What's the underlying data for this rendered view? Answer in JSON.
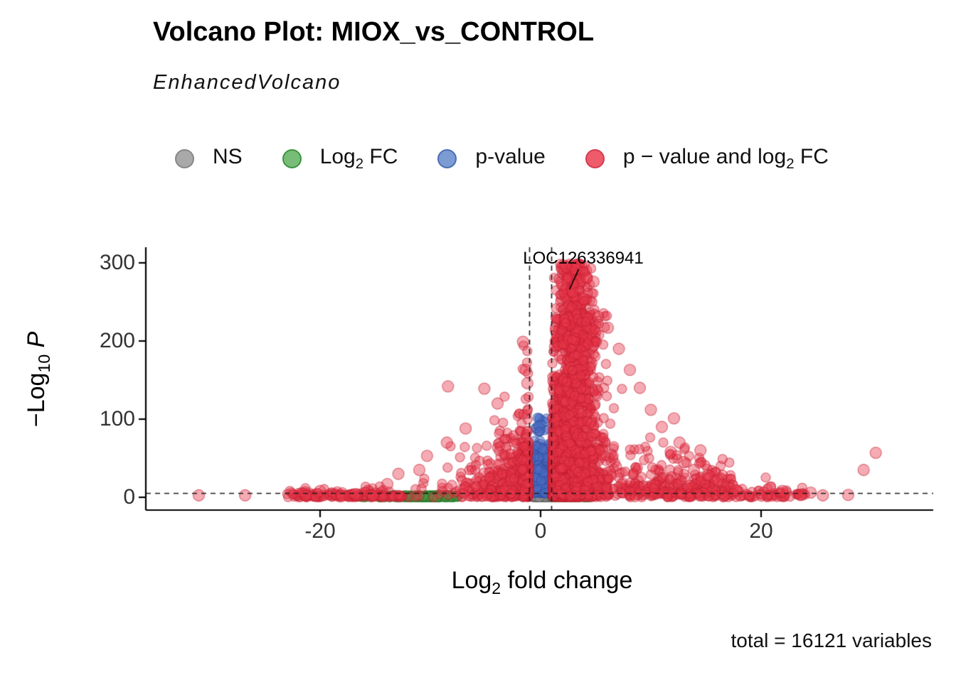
{
  "title": "Volcano Plot: MIOX_vs_CONTROL",
  "subtitle": "EnhancedVolcano",
  "legend": {
    "items": [
      {
        "name": "ns",
        "label_pre": "NS",
        "sub": "",
        "label_post": "",
        "fill": "#a9a9a9",
        "stroke": "#878787"
      },
      {
        "name": "log2fc",
        "label_pre": "Log",
        "sub": "2",
        "label_post": " FC",
        "fill": "#77bd77",
        "stroke": "#3f9442"
      },
      {
        "name": "p-value",
        "label_pre": "p-value",
        "sub": "",
        "label_post": "",
        "fill": "#7b9bd2",
        "stroke": "#4a6fb5"
      },
      {
        "name": "p-and-fc",
        "label_pre": "p − value and log",
        "sub": "2",
        "label_post": " FC",
        "fill": "#ee5b6b",
        "stroke": "#d63a52"
      }
    ]
  },
  "axes": {
    "x": {
      "title_pre": "Log",
      "title_sub": "2",
      "title_post": " fold change",
      "ticks": [
        {
          "label": "-20",
          "value": -20
        },
        {
          "label": "0",
          "value": 0
        },
        {
          "label": "20",
          "value": 20
        }
      ]
    },
    "y": {
      "title_pre": "−Log",
      "title_sub": "10",
      "title_post": " P",
      "ticks": [
        {
          "label": "0",
          "value": 0
        },
        {
          "label": "100",
          "value": 100
        },
        {
          "label": "200",
          "value": 200
        },
        {
          "label": "300",
          "value": 300
        }
      ]
    }
  },
  "caption": "total = 16121 variables",
  "annotation": {
    "label": "LOC126336941",
    "line": {
      "x1": 3.45,
      "y1": 292,
      "x2": 2.62,
      "y2": 266
    }
  },
  "chart_data": {
    "type": "scatter",
    "subtype": "volcano",
    "title": "Volcano Plot: MIOX_vs_CONTROL",
    "subtitle": "EnhancedVolcano",
    "xlabel": "Log2 fold change",
    "ylabel": "-Log10 P",
    "xlim": [
      -35.8,
      35.5
    ],
    "ylim": [
      0,
      320
    ],
    "total_variables": 16121,
    "thresholds": {
      "log2fc": [
        -1,
        1
      ],
      "pvalue_line_y": 5
    },
    "legend": [
      "NS",
      "Log2 FC",
      "p-value",
      "p-value and log2 FC"
    ],
    "labeled_points": [
      {
        "gene": "LOC126336941",
        "x": 2.62,
        "y": 263
      }
    ],
    "seed": 42,
    "colors": {
      "ns": {
        "fill": "rgba(150,150,150,0.55)",
        "stroke": "rgba(100,100,100,0.65)"
      },
      "fc": {
        "fill": "rgba(68,160,68,0.50)",
        "stroke": "rgba(40,120,40,0.60)"
      },
      "p": {
        "fill": "rgba(75,110,195,0.50)",
        "stroke": "rgba(50,80,160,0.60)"
      },
      "fcp": {
        "fill": "rgba(232,55,74,0.42)",
        "stroke": "rgba(196,28,48,0.50)"
      }
    },
    "clusters": [
      {
        "name": "ns-center",
        "cat": "ns",
        "n": 230,
        "x": {
          "dist": "normal",
          "mean": 0,
          "sd": 0.42,
          "min": -1,
          "max": 1
        },
        "y": {
          "dist": "halfnormal",
          "sd": 1.7,
          "max": 4.6
        }
      },
      {
        "name": "fc-left-main",
        "cat": "fc",
        "n": 250,
        "x": {
          "dist": "normal",
          "mean": -10,
          "sd": 1.3,
          "min": -14.5,
          "max": -7.4
        },
        "y": {
          "dist": "halfnormal",
          "sd": 1.3,
          "max": 4
        }
      },
      {
        "name": "fc-left-sparse",
        "cat": "fc",
        "n": 55,
        "x": {
          "dist": "uniform",
          "min": -16.5,
          "max": -12
        },
        "y": {
          "dist": "halfnormal",
          "sd": 1.2,
          "max": 3.5
        }
      },
      {
        "name": "fc-right",
        "cat": "fc",
        "n": 140,
        "x": {
          "dist": "normal",
          "mean": 2.6,
          "sd": 1.1,
          "min": 1.05,
          "max": 6
        },
        "y": {
          "dist": "halfnormal",
          "sd": 1.2,
          "max": 4
        }
      },
      {
        "name": "p-center",
        "cat": "p",
        "n": 320,
        "x": {
          "dist": "normal",
          "mean": 0,
          "sd": 0.42,
          "min": -1,
          "max": 1
        },
        "y": {
          "dist": "exp",
          "offset": 5,
          "scale": 26,
          "max": 103
        }
      },
      {
        "name": "fcp-right-exp",
        "cat": "fcp",
        "n": 1450,
        "x": {
          "dist": "exp",
          "offset": 1.05,
          "scale": 1.7,
          "max": 12.5
        },
        "y": {
          "dist": "exp",
          "scale": 42,
          "max": 300
        },
        "taper": {
          "start": 6,
          "span": 16,
          "min": 0.3
        }
      },
      {
        "name": "fcp-right-core",
        "cat": "fcp",
        "n": 900,
        "x": {
          "dist": "normal",
          "mean": 3,
          "sd": 1.2,
          "min": 1.05,
          "max": 8
        },
        "y": {
          "dist": "exp",
          "scale": 55,
          "max": 300
        }
      },
      {
        "name": "fcp-tower",
        "cat": "fcp",
        "n": 380,
        "x": {
          "dist": "normal",
          "mean": 3.1,
          "sd": 0.9,
          "min": 1.6,
          "max": 5.6
        },
        "y": {
          "dist": "uniform",
          "min": 120,
          "max": 300
        }
      },
      {
        "name": "fcp-band",
        "cat": "fcp",
        "n": 160,
        "x": {
          "dist": "normal",
          "mean": 3.2,
          "sd": 1.3,
          "min": 1.1,
          "max": 6.5
        },
        "y": {
          "dist": "uniform",
          "min": 190,
          "max": 236
        }
      },
      {
        "name": "fcp-right-tail",
        "cat": "fcp",
        "n": 270,
        "x": {
          "dist": "uniform",
          "min": 8,
          "max": 17.5
        },
        "y": {
          "dist": "exp",
          "scale": 14,
          "max": 70
        }
      },
      {
        "name": "fcp-right-far",
        "cat": "fcp",
        "n": 60,
        "x": {
          "dist": "uniform",
          "min": 17.5,
          "max": 24
        },
        "y": {
          "dist": "exp",
          "scale": 4,
          "max": 28
        }
      },
      {
        "name": "fcp-left-arm",
        "cat": "fcp",
        "n": 540,
        "x": {
          "dist": "exp",
          "offset": -1.05,
          "scale": 2.2,
          "sign": -1,
          "min": -12.5
        },
        "y": {
          "dist": "exp",
          "scale": 30,
          "max": 165
        },
        "taper": {
          "start": 1,
          "span": 13,
          "min": 0.1
        }
      },
      {
        "name": "fcp-left-spike",
        "cat": "fcp",
        "n": 70,
        "x": {
          "dist": "uniform",
          "min": -1.7,
          "max": -1.02
        },
        "y": {
          "dist": "exp",
          "scale": 55,
          "max": 205
        }
      },
      {
        "name": "fcp-left-tail",
        "cat": "fcp",
        "n": 150,
        "x": {
          "dist": "uniform",
          "min": -23,
          "max": -12.5
        },
        "y": {
          "dist": "exp",
          "scale": 3,
          "max": 14
        }
      }
    ],
    "outliers": [
      {
        "x": -31,
        "y": 2.5
      },
      {
        "x": -26.8,
        "y": 2.5
      },
      {
        "x": -21.3,
        "y": 2.5
      },
      {
        "x": -20,
        "y": 8
      },
      {
        "x": -18,
        "y": 2
      },
      {
        "x": -16.8,
        "y": 4
      },
      {
        "x": -15.2,
        "y": 2.5
      },
      {
        "x": -13.9,
        "y": 17
      },
      {
        "x": -12.9,
        "y": 30
      },
      {
        "x": -8.4,
        "y": 142
      },
      {
        "x": -5.1,
        "y": 139
      },
      {
        "x": -6.8,
        "y": 88
      },
      {
        "x": -8.5,
        "y": 70
      },
      {
        "x": -10.3,
        "y": 53
      },
      {
        "x": -11,
        "y": 35
      },
      {
        "x": -3.9,
        "y": 120
      },
      {
        "x": -1.6,
        "y": 199
      },
      {
        "x": -1.35,
        "y": 163
      },
      {
        "x": -1.2,
        "y": 146
      },
      {
        "x": 2.3,
        "y": 295
      },
      {
        "x": 3.2,
        "y": 292
      },
      {
        "x": 4.2,
        "y": 281
      },
      {
        "x": 4.8,
        "y": 276
      },
      {
        "x": 1.95,
        "y": 272
      },
      {
        "x": 2.9,
        "y": 263
      },
      {
        "x": 3.9,
        "y": 254
      },
      {
        "x": 5.2,
        "y": 231
      },
      {
        "x": 6.1,
        "y": 217
      },
      {
        "x": 7.1,
        "y": 190
      },
      {
        "x": 8.1,
        "y": 163
      },
      {
        "x": 9,
        "y": 140
      },
      {
        "x": 10,
        "y": 112
      },
      {
        "x": 11,
        "y": 90
      },
      {
        "x": 12.1,
        "y": 101
      },
      {
        "x": 11.8,
        "y": 58
      },
      {
        "x": 12.6,
        "y": 70
      },
      {
        "x": 13,
        "y": 45
      },
      {
        "x": 13.9,
        "y": 35
      },
      {
        "x": 14.5,
        "y": 60
      },
      {
        "x": 15.2,
        "y": 28
      },
      {
        "x": 16.1,
        "y": 22
      },
      {
        "x": 17.7,
        "y": 9
      },
      {
        "x": 20.8,
        "y": 12
      },
      {
        "x": 21.9,
        "y": 8
      },
      {
        "x": 23.6,
        "y": 3
      },
      {
        "x": 24.5,
        "y": 6
      },
      {
        "x": 25.6,
        "y": 2.5
      },
      {
        "x": 27.9,
        "y": 3
      },
      {
        "x": 29.3,
        "y": 35
      },
      {
        "x": 30.4,
        "y": 57
      }
    ]
  }
}
